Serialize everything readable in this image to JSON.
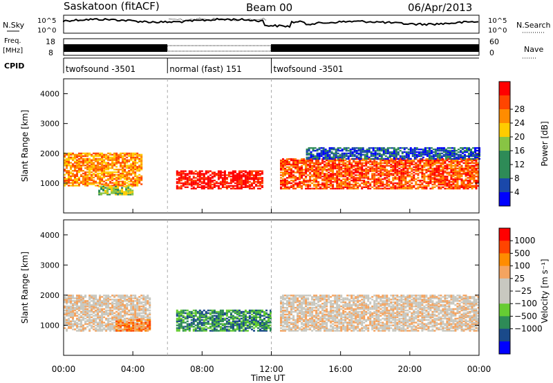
{
  "header": {
    "station": "Saskatoon (fitACF)",
    "beam": "Beam 00",
    "date": "06/Apr/2013"
  },
  "top_panels": {
    "nsky_label": "N.Sky",
    "nsky_ticks": [
      "10^5",
      "10^0"
    ],
    "nsearch_label": "N.Search",
    "freq_label_1": "Freq.",
    "freq_label_2": "[MHz]",
    "freq_ticks": [
      "18",
      "8"
    ],
    "nave_label": "Nave",
    "nave_ticks": [
      "60",
      "0"
    ],
    "cpid_label": "CPID"
  },
  "cpid_segments": [
    {
      "name": "twofsound -3501",
      "start": 0,
      "end": 6
    },
    {
      "name": "normal (fast) 151",
      "start": 6,
      "end": 12
    },
    {
      "name": "twofsound -3501",
      "start": 12,
      "end": 24
    }
  ],
  "colors": {
    "power": [
      "#0000ff",
      "#1a48aa",
      "#2e8b57",
      "#2e8b57",
      "#88c444",
      "#ffcc00",
      "#ff8c00",
      "#ff4500",
      "#ff0000"
    ],
    "velocity": [
      "#ff0000",
      "#ff4400",
      "#ff8c00",
      "#f4a460",
      "#c8c8c0",
      "#c8c8c0",
      "#66cc33",
      "#2e8b57",
      "#1a4a8a",
      "#0000ff"
    ],
    "ground": "#bebebe"
  },
  "chart_data": [
    {
      "type": "heatmap",
      "title": "Power",
      "xlabel": "Time UT",
      "ylabel": "Slant Range [km]",
      "xlim": [
        0,
        24
      ],
      "ylim": [
        0,
        4500
      ],
      "x_ticks": [
        "00:00",
        "04:00",
        "08:00",
        "12:00",
        "16:00",
        "20:00",
        "00:00"
      ],
      "x_tick_values": [
        0,
        4,
        8,
        12,
        16,
        20,
        24
      ],
      "y_ticks": [
        1000,
        2000,
        3000,
        4000
      ],
      "colorbar_label": "Power [dB]",
      "colorbar_ticks": [
        "4",
        "8",
        "12",
        "16",
        "20",
        "24",
        "28"
      ],
      "series": [
        {
          "name": "scatter_bands",
          "values": [
            {
              "t0": 0,
              "t1": 4.5,
              "r0": 900,
              "r1": 2000,
              "level": 6
            },
            {
              "t0": 2,
              "t1": 4,
              "r0": 600,
              "r1": 900,
              "level": 4
            },
            {
              "t0": 6.5,
              "t1": 11.5,
              "r0": 800,
              "r1": 1400,
              "level": 8
            },
            {
              "t0": 12.5,
              "t1": 24,
              "r0": 800,
              "r1": 1800,
              "level": 7
            },
            {
              "t0": 14,
              "t1": 24,
              "r0": 1800,
              "r1": 2200,
              "level": 1
            }
          ]
        }
      ]
    },
    {
      "type": "heatmap",
      "title": "Velocity",
      "xlabel": "Time UT",
      "ylabel": "Slant Range [km]",
      "xlim": [
        0,
        24
      ],
      "ylim": [
        0,
        4500
      ],
      "x_ticks": [
        "00:00",
        "04:00",
        "08:00",
        "12:00",
        "16:00",
        "20:00",
        "00:00"
      ],
      "x_tick_values": [
        0,
        4,
        8,
        12,
        16,
        20,
        24
      ],
      "y_ticks": [
        1000,
        2000,
        3000,
        4000
      ],
      "colorbar_label": "Velocity [m s⁻¹]",
      "colorbar_ticks": [
        "1000",
        "500",
        "100",
        "25",
        "−25",
        "−100",
        "−500",
        "−1000"
      ],
      "series": [
        {
          "name": "scatter_bands",
          "values": [
            {
              "t0": 0,
              "t1": 5,
              "r0": 800,
              "r1": 2000,
              "level": 4
            },
            {
              "t0": 3,
              "t1": 5,
              "r0": 800,
              "r1": 1200,
              "level": 2
            },
            {
              "t0": 6.5,
              "t1": 12,
              "r0": 800,
              "r1": 1500,
              "level": 7
            },
            {
              "t0": 12.5,
              "t1": 24,
              "r0": 800,
              "r1": 2000,
              "level": 4
            }
          ]
        }
      ]
    }
  ]
}
